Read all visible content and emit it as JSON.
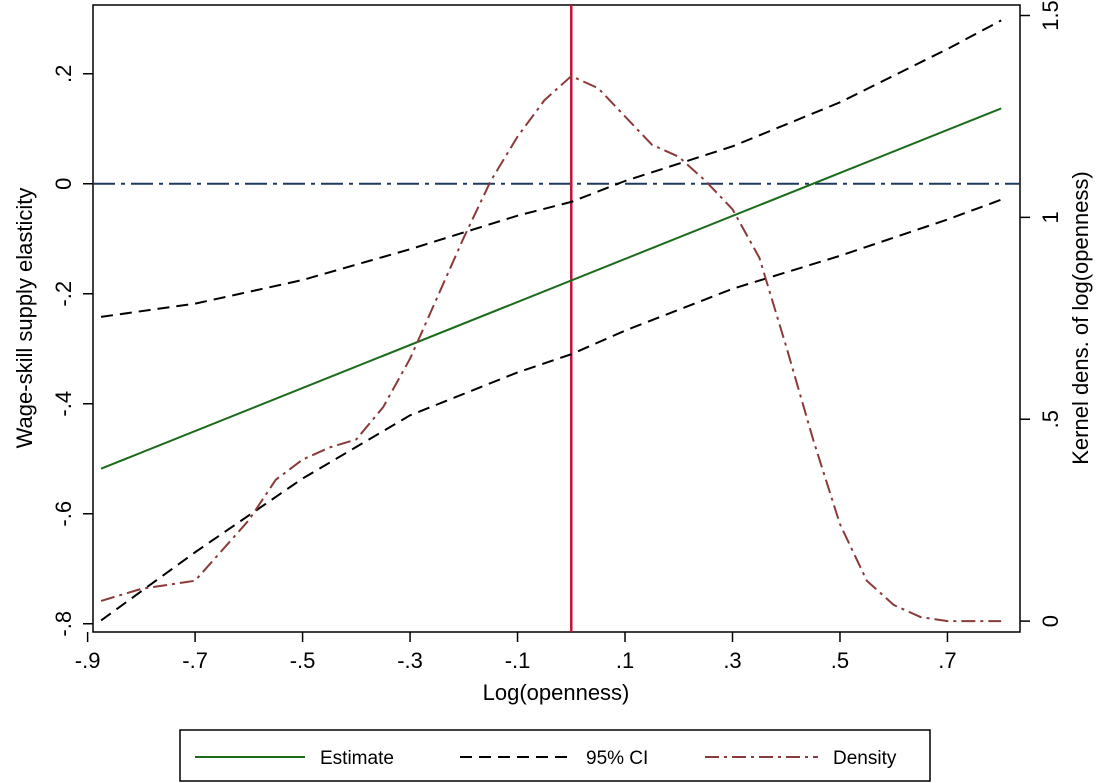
{
  "chart_data": {
    "type": "line",
    "title": "",
    "xlabel": "Log(openness)",
    "ylabel": "Wage-skill supply elasticity",
    "y2label": "Kernel dens. of log(openness)",
    "xlim": [
      -0.89,
      0.835
    ],
    "ylim": [
      -0.815,
      0.325
    ],
    "y2lim": [
      -0.027,
      1.526
    ],
    "x_ticks": [
      -0.9,
      -0.7,
      -0.5,
      -0.3,
      -0.1,
      0.1,
      0.3,
      0.5,
      0.7
    ],
    "x_tick_labels": [
      "-.9",
      "-.7",
      "-.5",
      "-.3",
      "-.1",
      ".1",
      ".3",
      ".5",
      ".7"
    ],
    "y_ticks": [
      -0.8,
      -0.6,
      -0.4,
      -0.2,
      0,
      0.2
    ],
    "y_tick_labels": [
      "-.8",
      "-.6",
      "-.4",
      "-.2",
      "0",
      ".2"
    ],
    "y2_ticks": [
      0,
      0.5,
      1,
      1.5
    ],
    "y2_tick_labels": [
      "0",
      ".5",
      "1",
      "1.5"
    ],
    "reference_lines": {
      "horizontal_y": 0,
      "horizontal_color": "#1f3a5f",
      "vertical_x": 0,
      "vertical_color": "#c0143c"
    },
    "legend_position": "bottom",
    "series": [
      {
        "name": "Estimate",
        "axis": "left",
        "style": "solid",
        "color": "#1a6b1a",
        "x": [
          -0.875,
          0.8
        ],
        "y": [
          -0.518,
          0.137
        ]
      },
      {
        "name": "95% CI",
        "axis": "left",
        "style": "dashed",
        "color": "#000000",
        "x": [
          -0.875,
          -0.7,
          -0.5,
          -0.3,
          -0.1,
          0.0,
          0.1,
          0.3,
          0.5,
          0.7,
          0.8
        ],
        "y": [
          -0.242,
          -0.218,
          -0.175,
          -0.119,
          -0.058,
          -0.033,
          0.005,
          0.068,
          0.148,
          0.245,
          0.297
        ]
      },
      {
        "name": "95% CI",
        "axis": "left",
        "style": "dashed",
        "color": "#000000",
        "x": [
          -0.875,
          -0.7,
          -0.5,
          -0.3,
          -0.1,
          0.0,
          0.1,
          0.3,
          0.5,
          0.7,
          0.8
        ],
        "y": [
          -0.794,
          -0.67,
          -0.536,
          -0.421,
          -0.343,
          -0.31,
          -0.267,
          -0.191,
          -0.131,
          -0.065,
          -0.029
        ]
      },
      {
        "name": "Density",
        "axis": "right",
        "style": "dashdot",
        "color": "#8b3a3a",
        "x": [
          -0.875,
          -0.8,
          -0.7,
          -0.6,
          -0.55,
          -0.5,
          -0.45,
          -0.4,
          -0.35,
          -0.3,
          -0.25,
          -0.2,
          -0.15,
          -0.1,
          -0.05,
          0.0,
          0.05,
          0.1,
          0.15,
          0.2,
          0.25,
          0.3,
          0.35,
          0.4,
          0.45,
          0.5,
          0.55,
          0.6,
          0.65,
          0.7,
          0.8
        ],
        "y": [
          0.05,
          0.08,
          0.1,
          0.25,
          0.35,
          0.4,
          0.43,
          0.45,
          0.53,
          0.65,
          0.8,
          0.95,
          1.09,
          1.2,
          1.29,
          1.35,
          1.32,
          1.25,
          1.18,
          1.15,
          1.09,
          1.02,
          0.9,
          0.68,
          0.45,
          0.24,
          0.1,
          0.04,
          0.01,
          0.0,
          0.0
        ]
      }
    ],
    "legend": [
      {
        "label": "Estimate",
        "style": "solid",
        "color": "#1a6b1a"
      },
      {
        "label": "95% CI",
        "style": "dashed",
        "color": "#000000"
      },
      {
        "label": "Density",
        "style": "dashdot",
        "color": "#8b3a3a"
      }
    ]
  }
}
